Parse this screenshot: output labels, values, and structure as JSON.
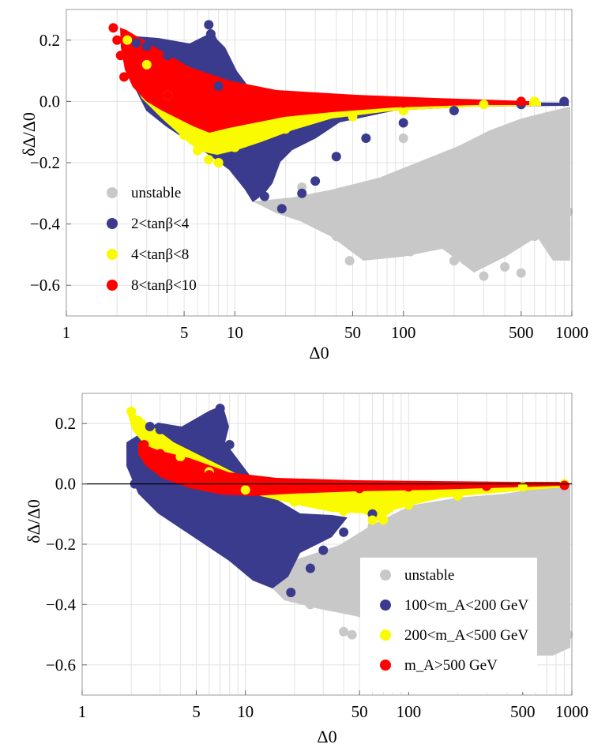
{
  "colors": {
    "unstable": "#c8c8c8",
    "blue": "#3b3b8e",
    "yellow": "#fafa00",
    "red": "#ff0000",
    "frame": "#999999",
    "grid": "#e2e2e2"
  },
  "chart_data": [
    {
      "type": "scatter",
      "xlabel": "Δ0",
      "ylabel": "δΔ/Δ0",
      "xscale": "log",
      "xlim": [
        1,
        1000
      ],
      "ylim": [
        -0.7,
        0.3
      ],
      "xticks": [
        1,
        5,
        10,
        50,
        100,
        500,
        1000
      ],
      "xtick_labels": [
        "1",
        "5",
        "10",
        "50",
        "100",
        "500",
        "1000"
      ],
      "yticks": [
        -0.6,
        -0.4,
        -0.2,
        0.0,
        0.2
      ],
      "ytick_labels": [
        "−0.6",
        "−0.4",
        "−0.2",
        "0.0",
        "0.2"
      ],
      "grid": true,
      "zero_line": false,
      "legend_position": "bottom-left",
      "series": [
        {
          "name": "unstable",
          "color_key": "unstable",
          "points": [
            [
              20,
              -0.33
            ],
            [
              25,
              -0.28
            ],
            [
              30,
              -0.38
            ],
            [
              40,
              -0.44
            ],
            [
              48,
              -0.52
            ],
            [
              55,
              -0.47
            ],
            [
              70,
              -0.42
            ],
            [
              90,
              -0.37
            ],
            [
              110,
              -0.49
            ],
            [
              150,
              -0.3
            ],
            [
              200,
              -0.52
            ],
            [
              250,
              -0.42
            ],
            [
              300,
              -0.57
            ],
            [
              350,
              -0.46
            ],
            [
              400,
              -0.54
            ],
            [
              500,
              -0.56
            ],
            [
              600,
              -0.44
            ],
            [
              800,
              -0.5
            ],
            [
              950,
              -0.36
            ],
            [
              40,
              -0.18
            ],
            [
              100,
              -0.12
            ],
            [
              300,
              -0.22
            ],
            [
              700,
              -0.16
            ],
            [
              900,
              -0.08
            ]
          ]
        },
        {
          "name": "2<tanβ<4",
          "color_key": "blue",
          "points": [
            [
              2.6,
              0.19
            ],
            [
              3,
              0.18
            ],
            [
              4,
              0.15
            ],
            [
              5.5,
              0.16
            ],
            [
              7,
              0.25
            ],
            [
              7.2,
              0.22
            ],
            [
              8,
              0.05
            ],
            [
              10,
              -0.22
            ],
            [
              12,
              -0.27
            ],
            [
              15,
              -0.31
            ],
            [
              19,
              -0.35
            ],
            [
              25,
              -0.3
            ],
            [
              30,
              -0.26
            ],
            [
              40,
              -0.18
            ],
            [
              60,
              -0.12
            ],
            [
              100,
              -0.07
            ],
            [
              200,
              -0.03
            ],
            [
              500,
              -0.01
            ],
            [
              900,
              0.0
            ]
          ]
        },
        {
          "name": "4<tanβ<8",
          "color_key": "yellow",
          "points": [
            [
              2.3,
              0.2
            ],
            [
              3,
              0.12
            ],
            [
              4,
              0.02
            ],
            [
              5,
              -0.11
            ],
            [
              6,
              -0.16
            ],
            [
              7,
              -0.19
            ],
            [
              8,
              -0.2
            ],
            [
              10,
              -0.15
            ],
            [
              20,
              -0.09
            ],
            [
              50,
              -0.05
            ],
            [
              100,
              -0.03
            ],
            [
              300,
              -0.01
            ],
            [
              600,
              0.0
            ]
          ]
        },
        {
          "name": "8<tanβ<10",
          "color_key": "red",
          "points": [
            [
              1.9,
              0.24
            ],
            [
              2,
              0.2
            ],
            [
              2.1,
              0.15
            ],
            [
              2.2,
              0.08
            ],
            [
              3,
              0.06
            ],
            [
              4,
              0.02
            ],
            [
              5,
              -0.02
            ],
            [
              8,
              -0.05
            ],
            [
              20,
              -0.02
            ],
            [
              50,
              -0.01
            ],
            [
              100,
              -0.005
            ],
            [
              500,
              0.0
            ]
          ]
        }
      ]
    },
    {
      "type": "scatter",
      "xlabel": "Δ0",
      "ylabel": "δΔ/Δ0",
      "xscale": "log",
      "xlim": [
        1,
        1000
      ],
      "ylim": [
        -0.7,
        0.3
      ],
      "xticks": [
        1,
        5,
        10,
        50,
        100,
        500,
        1000
      ],
      "xtick_labels": [
        "1",
        "5",
        "10",
        "50",
        "100",
        "500",
        "1000"
      ],
      "yticks": [
        -0.6,
        -0.4,
        -0.2,
        0.0,
        0.2
      ],
      "ytick_labels": [
        "−0.6",
        "−0.4",
        "−0.2",
        "0.0",
        "0.2"
      ],
      "grid": true,
      "zero_line": true,
      "legend_position": "bottom-right",
      "series": [
        {
          "name": "unstable",
          "color_key": "unstable",
          "points": [
            [
              20,
              -0.33
            ],
            [
              25,
              -0.4
            ],
            [
              30,
              -0.38
            ],
            [
              40,
              -0.49
            ],
            [
              45,
              -0.5
            ],
            [
              55,
              -0.45
            ],
            [
              80,
              -0.4
            ],
            [
              120,
              -0.46
            ],
            [
              200,
              -0.52
            ],
            [
              300,
              -0.45
            ],
            [
              400,
              -0.47
            ],
            [
              500,
              -0.52
            ],
            [
              600,
              -0.48
            ],
            [
              800,
              -0.44
            ],
            [
              950,
              -0.5
            ],
            [
              60,
              -0.14
            ],
            [
              150,
              -0.2
            ],
            [
              700,
              -0.16
            ]
          ]
        },
        {
          "name": "100<m_A<200 GeV",
          "color_key": "blue",
          "points": [
            [
              2.6,
              0.19
            ],
            [
              3,
              0.18
            ],
            [
              4,
              0.17
            ],
            [
              5,
              0.16
            ],
            [
              7,
              0.25
            ],
            [
              7.2,
              0.21
            ],
            [
              8,
              0.13
            ],
            [
              2.1,
              0.0
            ],
            [
              3,
              -0.08
            ],
            [
              5,
              -0.14
            ],
            [
              8,
              -0.2
            ],
            [
              12,
              -0.26
            ],
            [
              15,
              -0.31
            ],
            [
              19,
              -0.36
            ],
            [
              25,
              -0.28
            ],
            [
              30,
              -0.22
            ],
            [
              40,
              -0.16
            ],
            [
              60,
              -0.1
            ]
          ]
        },
        {
          "name": "200<m_A<500 GeV",
          "color_key": "yellow",
          "points": [
            [
              2.0,
              0.24
            ],
            [
              2.2,
              0.21
            ],
            [
              3,
              0.14
            ],
            [
              4,
              0.09
            ],
            [
              6,
              0.04
            ],
            [
              10,
              -0.02
            ],
            [
              20,
              -0.06
            ],
            [
              40,
              -0.09
            ],
            [
              60,
              -0.12
            ],
            [
              70,
              -0.12
            ],
            [
              100,
              -0.07
            ],
            [
              200,
              -0.04
            ],
            [
              500,
              -0.01
            ],
            [
              900,
              0.0
            ]
          ]
        },
        {
          "name": "m_A>500 GeV",
          "color_key": "red",
          "points": [
            [
              2.4,
              0.13
            ],
            [
              3,
              0.1
            ],
            [
              4,
              0.06
            ],
            [
              6,
              0.03
            ],
            [
              10,
              0.01
            ],
            [
              20,
              -0.01
            ],
            [
              50,
              -0.015
            ],
            [
              100,
              -0.01
            ],
            [
              300,
              -0.008
            ],
            [
              900,
              -0.005
            ]
          ]
        }
      ]
    }
  ]
}
